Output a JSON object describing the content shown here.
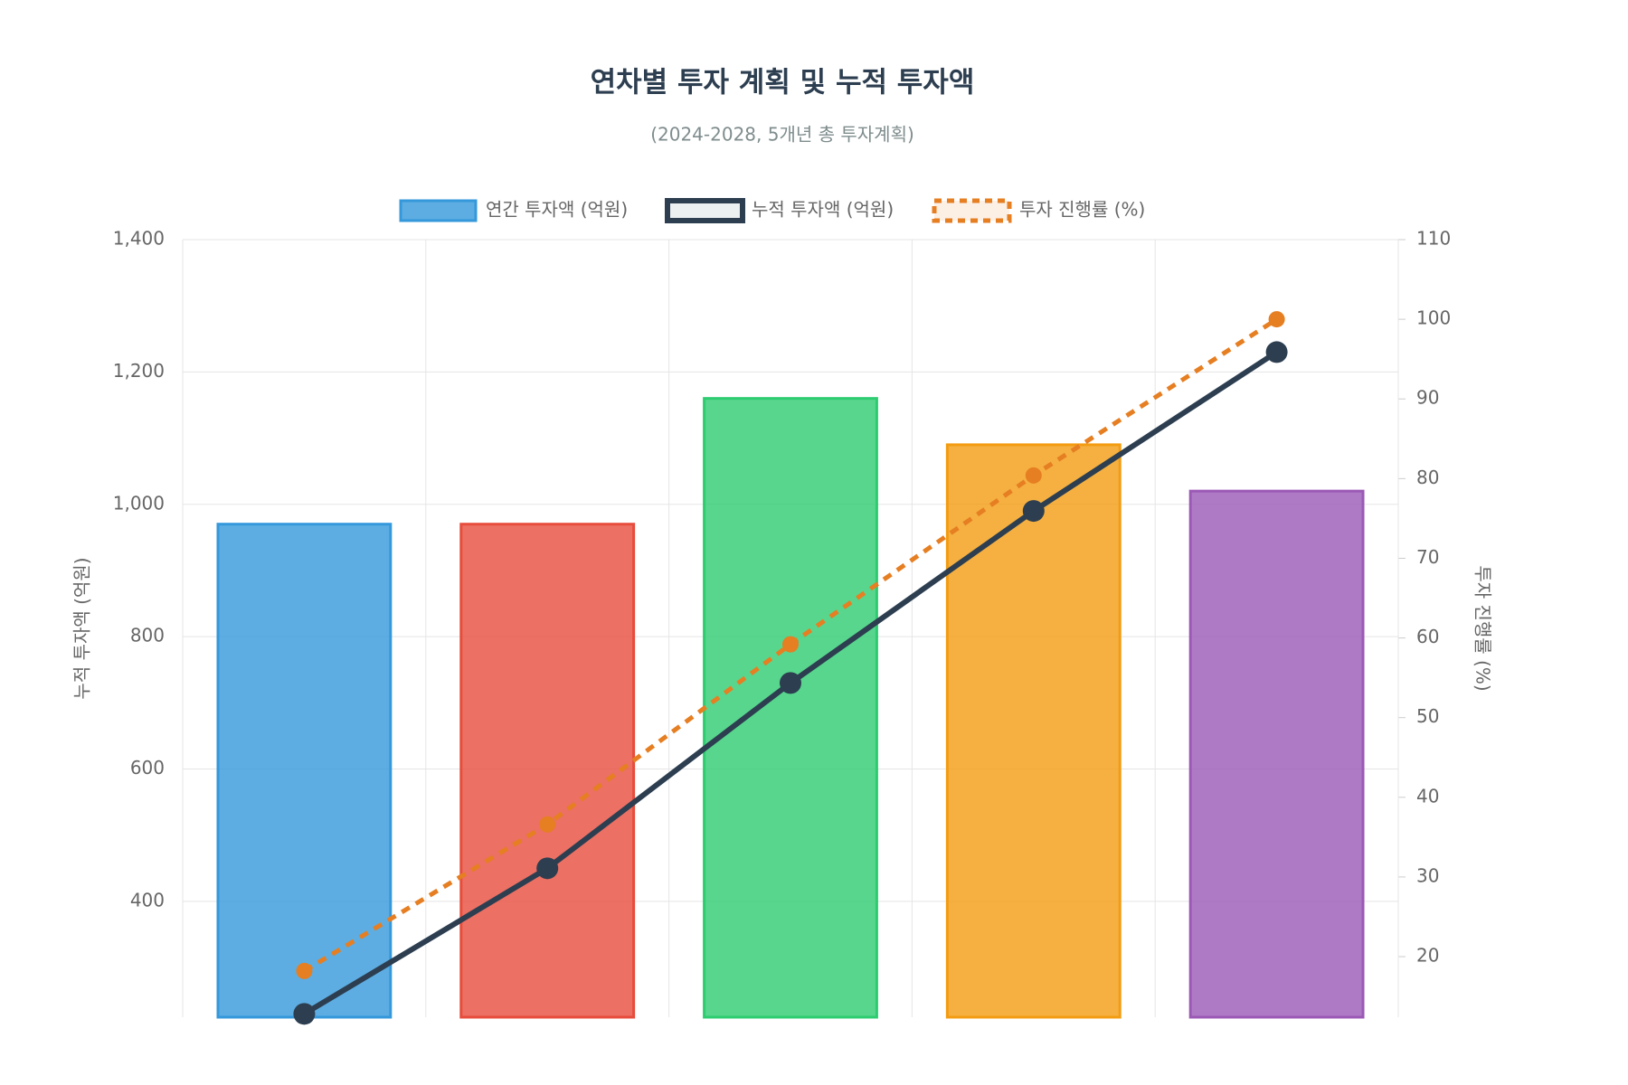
{
  "chart_data": {
    "type": "bar",
    "title": "연차별 투자 계획 및 누적 투자액",
    "subtitle": "(2024-2028, 5개년 총 투자계획)",
    "y_label": "누적 투자액 (억원)",
    "y2_label": "투자 진행률 (%)",
    "categories": [
      null,
      null,
      null,
      null,
      null
    ],
    "series": [
      {
        "name": "연간 투자액 (억원)",
        "type": "bar",
        "color": "#3498db",
        "colors": [
          "#3498db",
          "#e74c3c",
          "#2ecc71",
          "#f39c12",
          "#9b59b6"
        ],
        "values": [
          970,
          970,
          1160,
          1090,
          1020
        ]
      },
      {
        "name": "누적 투자액 (억원)",
        "type": "line",
        "color": "#2c3e50",
        "values": [
          230,
          450,
          730,
          990,
          1230
        ]
      },
      {
        "name": "투자 진행률 (%)",
        "type": "line",
        "color": "#e67e22",
        "dashed": true,
        "axis": "y2",
        "values": [
          18.2,
          36.6,
          59.2,
          80.4,
          100
        ]
      }
    ],
    "ylim": [
      225,
      1400
    ],
    "yticks": [
      400,
      600,
      800,
      {
        "value": 1000,
        "label": "1,000"
      },
      {
        "value": 1200,
        "label": "1,200"
      },
      {
        "value": 1400,
        "label": "1,400"
      }
    ],
    "y2lim": [
      12.4,
      110
    ],
    "y2ticks": [
      20,
      30,
      40,
      50,
      60,
      70,
      80,
      90,
      100,
      110
    ],
    "grid": true,
    "legend": "top"
  }
}
